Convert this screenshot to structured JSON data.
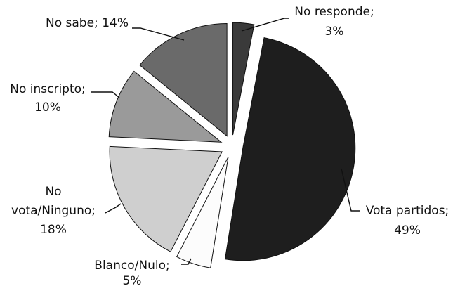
{
  "chart_data": {
    "type": "pie",
    "exploded": true,
    "start_angle_deg": 0,
    "direction": "clockwise",
    "slices": [
      {
        "label": "No responde",
        "value": 3,
        "display": "3%",
        "color": "#3a3a3a"
      },
      {
        "label": "Vota partidos",
        "value": 49,
        "display": "49%",
        "color": "#1e1e1e"
      },
      {
        "label": "Blanco/Nulo",
        "value": 5,
        "display": "5%",
        "color": "#fcfcfc"
      },
      {
        "label": "No vota/Ninguno",
        "value": 18,
        "display": "18%",
        "color": "#cfcfcf"
      },
      {
        "label": "No inscripto",
        "value": 10,
        "display": "10%",
        "color": "#9a9a9a"
      },
      {
        "label": "No sabe",
        "value": 14,
        "display": "14%",
        "color": "#6a6a6a"
      }
    ]
  },
  "labels": {
    "no_responde": {
      "line1": "No responde;",
      "line2": "3%"
    },
    "vota_partidos": {
      "line1": "Vota partidos;",
      "line2": "49%"
    },
    "blanco_nulo": {
      "line1": "Blanco/Nulo;",
      "line2": "5%"
    },
    "no_vota": {
      "line1": "No",
      "line2": "vota/Ninguno;",
      "line3": "18%"
    },
    "no_inscripto": {
      "line1": "No inscripto;",
      "line2": "10%"
    },
    "no_sabe": {
      "line1": "No sabe; 14%"
    }
  }
}
